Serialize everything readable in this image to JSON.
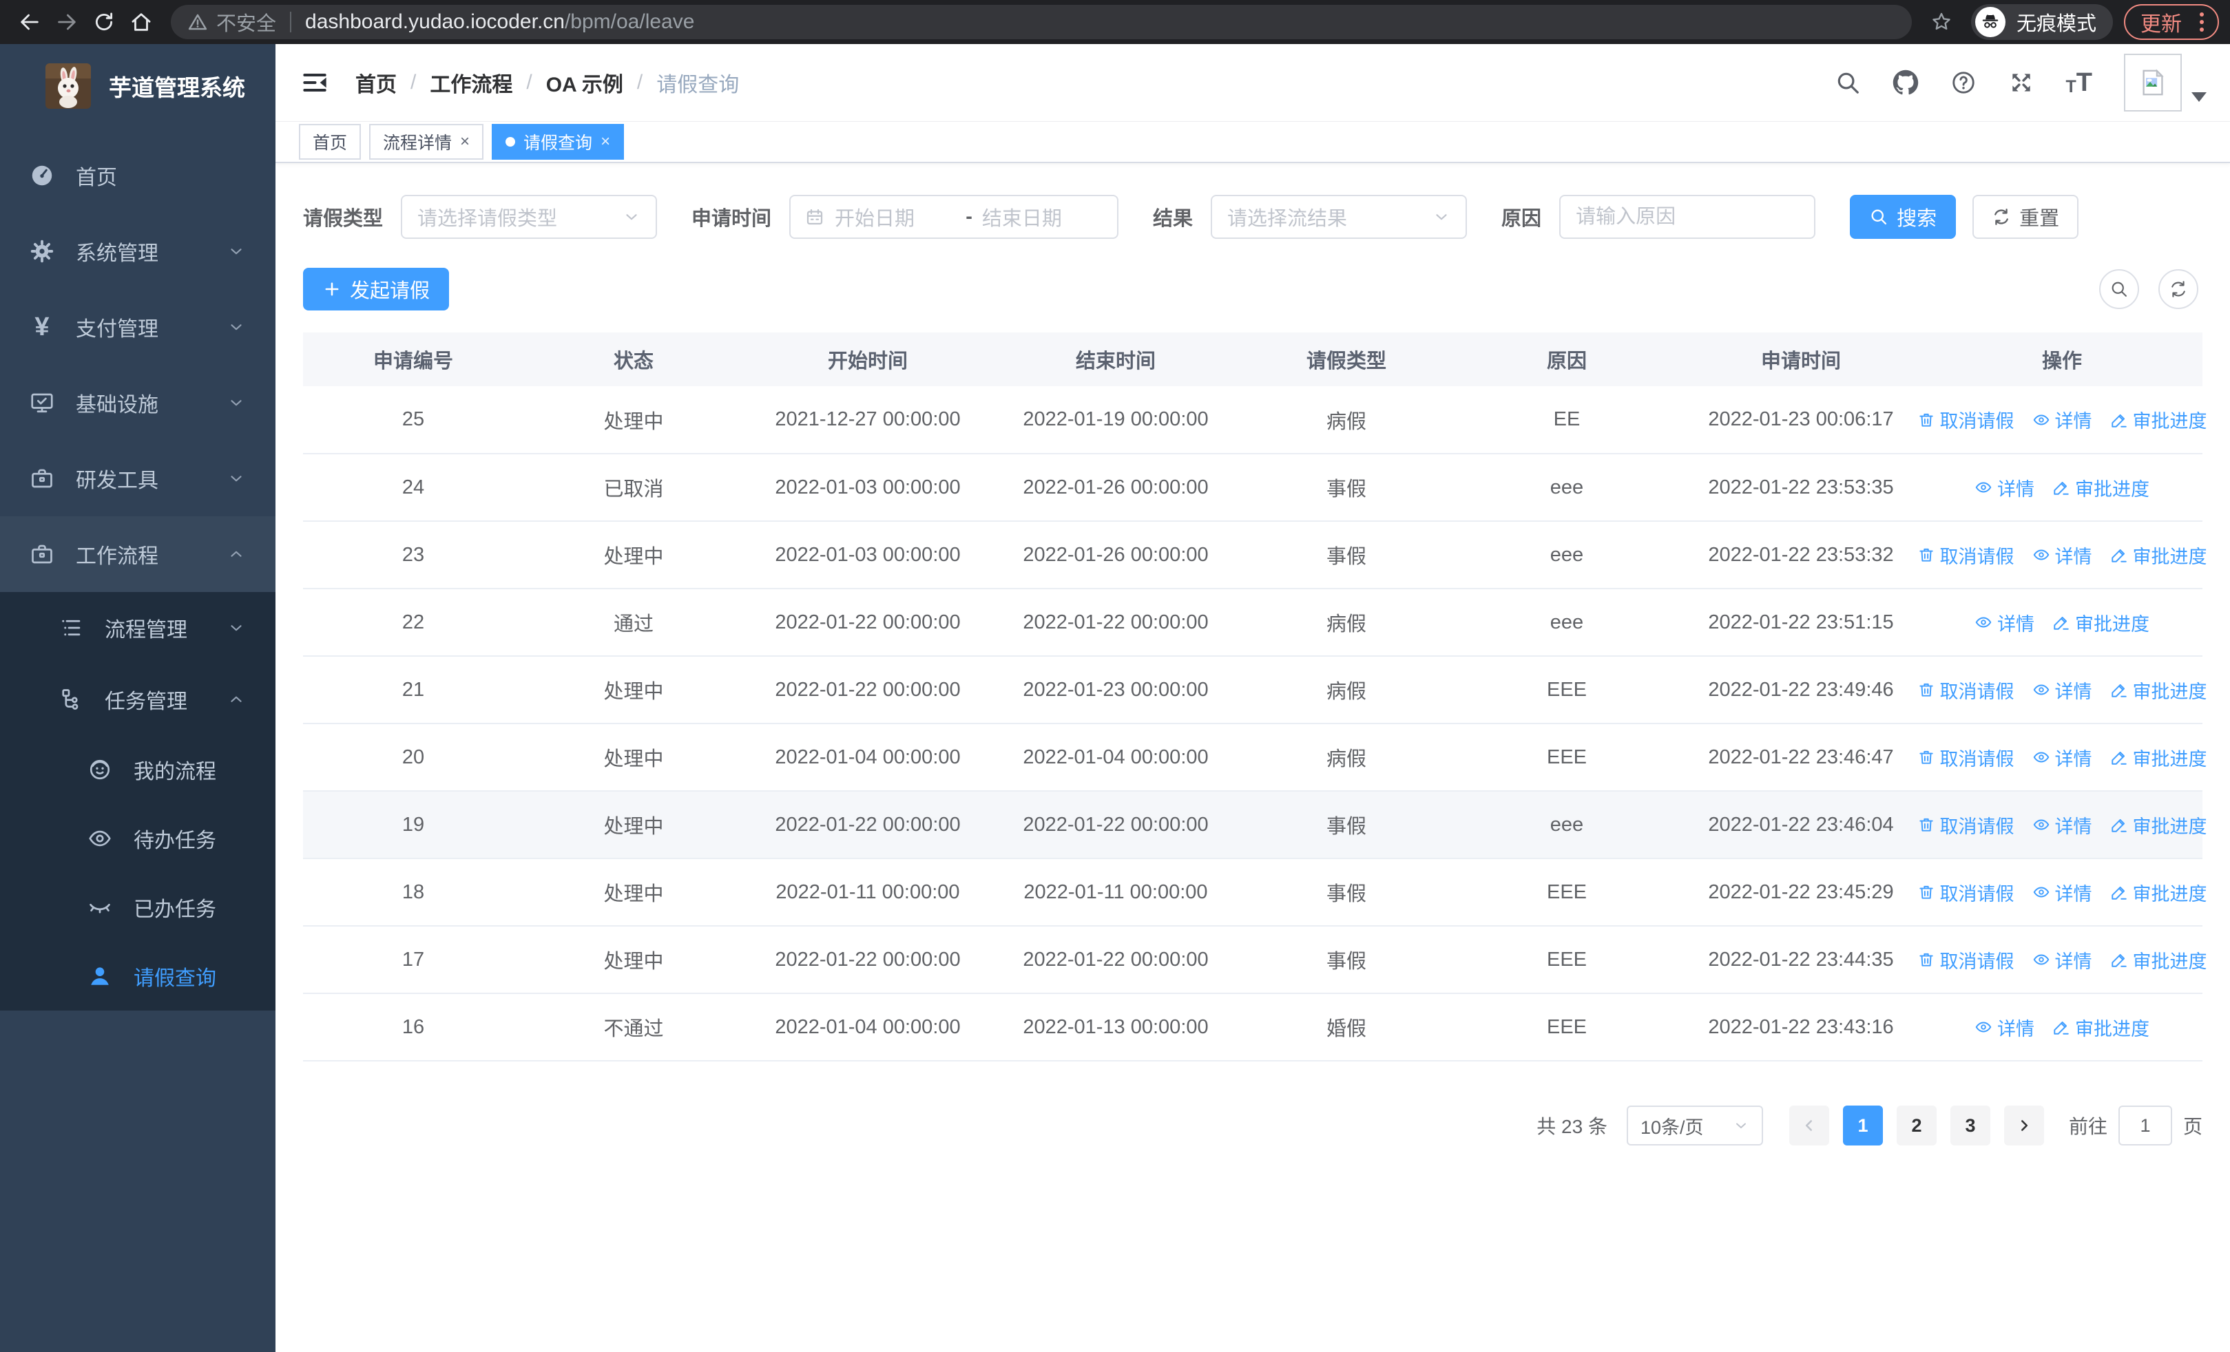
{
  "browser": {
    "security_label": "不安全",
    "url_host": "dashboard.yudao.iocoder.cn",
    "url_path": "/bpm/oa/leave",
    "incognito_label": "无痕模式",
    "update_label": "更新"
  },
  "sidebar": {
    "logo_title": "芋道管理系统",
    "items": [
      {
        "label": "首页",
        "icon": "dashboard-icon",
        "level": 1
      },
      {
        "label": "系统管理",
        "icon": "gear-icon",
        "level": 1,
        "chevron": "down"
      },
      {
        "label": "支付管理",
        "icon": "yen-icon",
        "level": 1,
        "chevron": "down"
      },
      {
        "label": "基础设施",
        "icon": "monitor-icon",
        "level": 1,
        "chevron": "down"
      },
      {
        "label": "研发工具",
        "icon": "toolbox-icon",
        "level": 1,
        "chevron": "down"
      },
      {
        "label": "工作流程",
        "icon": "briefcase-icon",
        "level": 1,
        "chevron": "up",
        "open": true
      },
      {
        "label": "流程管理",
        "icon": "list-icon",
        "level": 2,
        "chevron": "down",
        "in_submenu": true
      },
      {
        "label": "任务管理",
        "icon": "tree-icon",
        "level": 2,
        "chevron": "up",
        "in_submenu": true
      },
      {
        "label": "我的流程",
        "icon": "face-icon",
        "level": 3,
        "in_submenu": true
      },
      {
        "label": "待办任务",
        "icon": "eye-icon",
        "level": 3,
        "in_submenu": true
      },
      {
        "label": "已办任务",
        "icon": "eye-closed-icon",
        "level": 3,
        "in_submenu": true
      },
      {
        "label": "请假查询",
        "icon": "user-icon",
        "level": 3,
        "in_submenu": true,
        "active": true
      }
    ]
  },
  "navbar": {
    "breadcrumb": [
      "首页",
      "工作流程",
      "OA 示例",
      "请假查询"
    ]
  },
  "tabs": [
    {
      "label": "首页"
    },
    {
      "label": "流程详情",
      "closable": true
    },
    {
      "label": "请假查询",
      "closable": true,
      "active": true
    }
  ],
  "filters": {
    "leave_type_label": "请假类型",
    "leave_type_placeholder": "请选择请假类型",
    "apply_time_label": "申请时间",
    "start_date_placeholder": "开始日期",
    "date_separator": "-",
    "end_date_placeholder": "结束日期",
    "result_label": "结果",
    "result_placeholder": "请选择流结果",
    "reason_label": "原因",
    "reason_placeholder": "请输入原因",
    "search_label": "搜索",
    "reset_label": "重置"
  },
  "toolbar": {
    "create_label": "发起请假"
  },
  "table": {
    "columns": [
      "申请编号",
      "状态",
      "开始时间",
      "结束时间",
      "请假类型",
      "原因",
      "申请时间",
      "操作"
    ],
    "action_labels": {
      "cancel": "取消请假",
      "detail": "详情",
      "progress": "审批进度"
    },
    "rows": [
      {
        "id": "25",
        "status": "处理中",
        "start_time": "2021-12-27 00:00:00",
        "end_time": "2022-01-19 00:00:00",
        "leave_type": "病假",
        "reason": "EE",
        "apply_time": "2022-01-23 00:06:17",
        "cancellable": true
      },
      {
        "id": "24",
        "status": "已取消",
        "start_time": "2022-01-03 00:00:00",
        "end_time": "2022-01-26 00:00:00",
        "leave_type": "事假",
        "reason": "eee",
        "apply_time": "2022-01-22 23:53:35",
        "cancellable": false
      },
      {
        "id": "23",
        "status": "处理中",
        "start_time": "2022-01-03 00:00:00",
        "end_time": "2022-01-26 00:00:00",
        "leave_type": "事假",
        "reason": "eee",
        "apply_time": "2022-01-22 23:53:32",
        "cancellable": true
      },
      {
        "id": "22",
        "status": "通过",
        "start_time": "2022-01-22 00:00:00",
        "end_time": "2022-01-22 00:00:00",
        "leave_type": "病假",
        "reason": "eee",
        "apply_time": "2022-01-22 23:51:15",
        "cancellable": false
      },
      {
        "id": "21",
        "status": "处理中",
        "start_time": "2022-01-22 00:00:00",
        "end_time": "2022-01-23 00:00:00",
        "leave_type": "病假",
        "reason": "EEE",
        "apply_time": "2022-01-22 23:49:46",
        "cancellable": true
      },
      {
        "id": "20",
        "status": "处理中",
        "start_time": "2022-01-04 00:00:00",
        "end_time": "2022-01-04 00:00:00",
        "leave_type": "病假",
        "reason": "EEE",
        "apply_time": "2022-01-22 23:46:47",
        "cancellable": true
      },
      {
        "id": "19",
        "status": "处理中",
        "start_time": "2022-01-22 00:00:00",
        "end_time": "2022-01-22 00:00:00",
        "leave_type": "事假",
        "reason": "eee",
        "apply_time": "2022-01-22 23:46:04",
        "cancellable": true,
        "highlighted": true
      },
      {
        "id": "18",
        "status": "处理中",
        "start_time": "2022-01-11 00:00:00",
        "end_time": "2022-01-11 00:00:00",
        "leave_type": "事假",
        "reason": "EEE",
        "apply_time": "2022-01-22 23:45:29",
        "cancellable": true
      },
      {
        "id": "17",
        "status": "处理中",
        "start_time": "2022-01-22 00:00:00",
        "end_time": "2022-01-22 00:00:00",
        "leave_type": "事假",
        "reason": "EEE",
        "apply_time": "2022-01-22 23:44:35",
        "cancellable": true
      },
      {
        "id": "16",
        "status": "不通过",
        "start_time": "2022-01-04 00:00:00",
        "end_time": "2022-01-13 00:00:00",
        "leave_type": "婚假",
        "reason": "EEE",
        "apply_time": "2022-01-22 23:43:16",
        "cancellable": false
      }
    ]
  },
  "pagination": {
    "total_label": "共 23 条",
    "page_size_label": "10条/页",
    "pages": [
      "1",
      "2",
      "3"
    ],
    "active_page": "1",
    "goto_label": "前往",
    "goto_value": "1",
    "page_unit": "页"
  },
  "colors": {
    "accent": "#409eff",
    "sidebar_bg": "#304156",
    "submenu_bg": "#1f2d3d",
    "update_pill": "#f28b82"
  }
}
